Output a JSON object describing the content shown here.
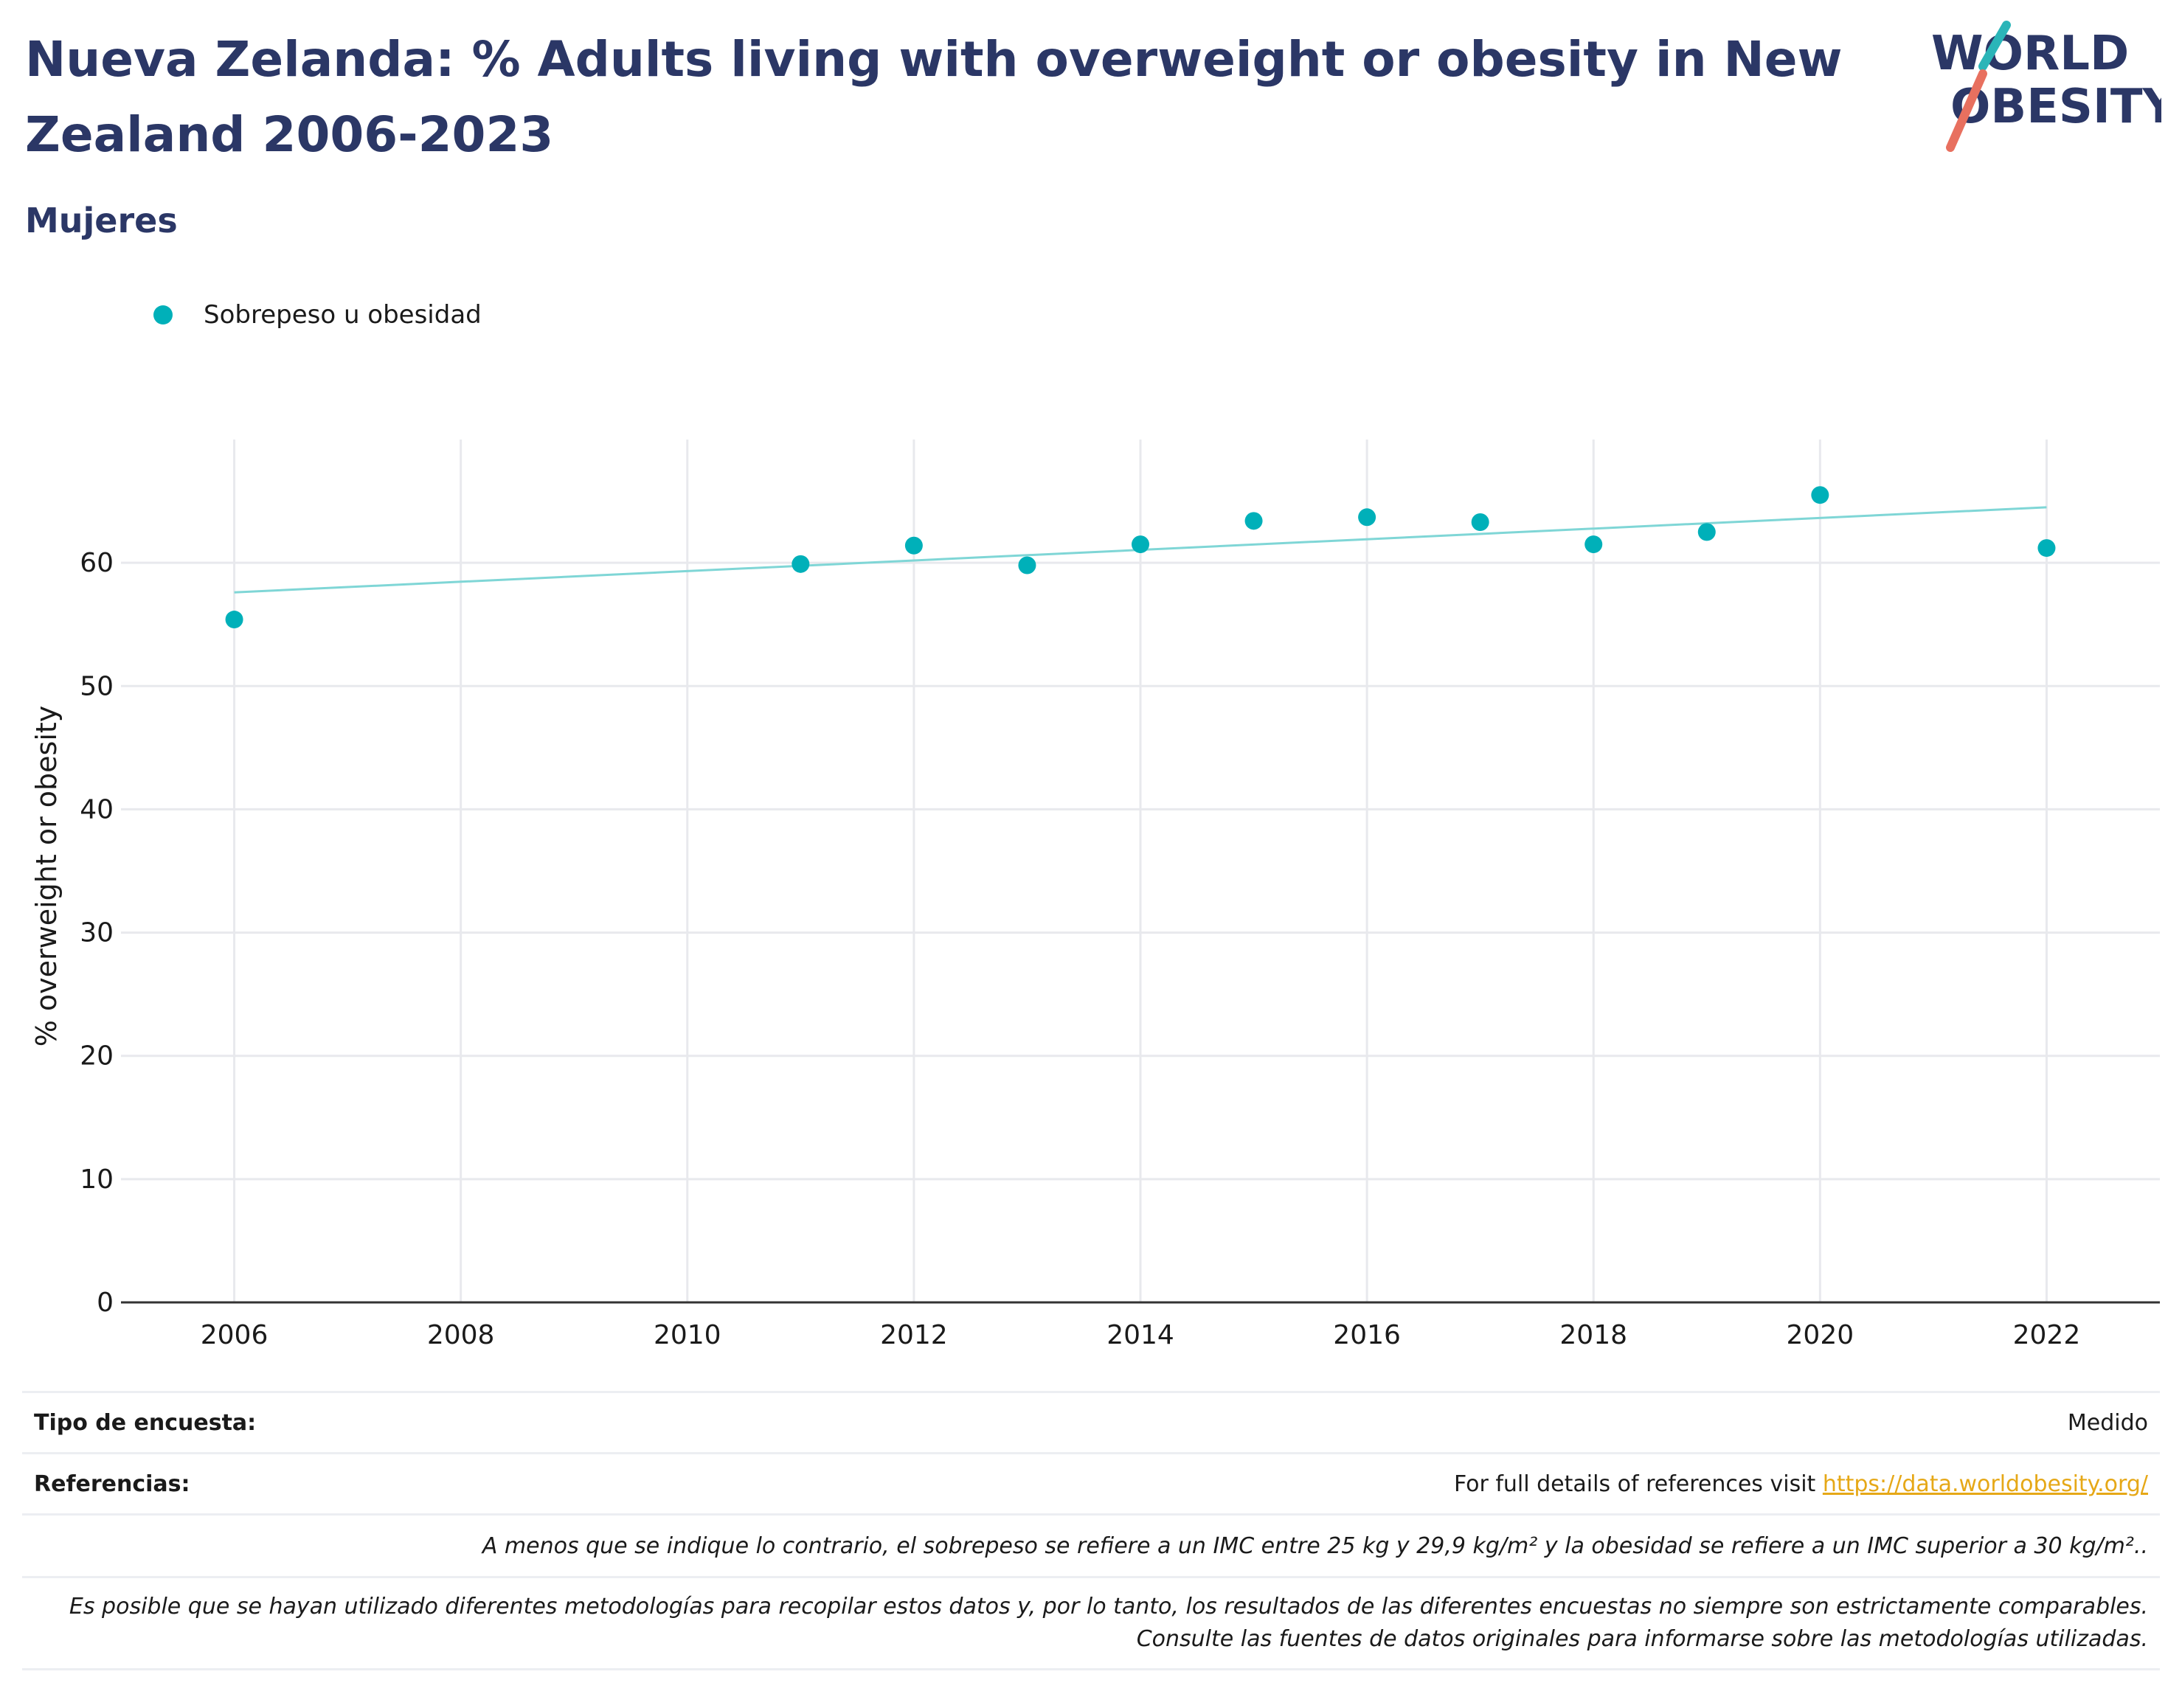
{
  "header": {
    "title": "Nueva Zelanda: % Adults living with overweight or obesity in New Zealand 2006-2023",
    "subtitle": "Mujeres"
  },
  "logo": {
    "line1": "WORLD",
    "line2": "OBESITY",
    "icon": "world-obesity-logo"
  },
  "colors": {
    "title": "#2b3766",
    "series": "#00b0b9",
    "trend": "#7fd6d6",
    "link": "#e6a817",
    "grid": "#e8e9ed"
  },
  "chart_data": {
    "type": "scatter",
    "xlabel": "",
    "ylabel": "% overweight or obesity",
    "xlim": [
      2005,
      2023
    ],
    "ylim": [
      0,
      70
    ],
    "xticks": [
      2006,
      2008,
      2010,
      2012,
      2014,
      2016,
      2018,
      2020,
      2022
    ],
    "yticks": [
      0,
      10,
      20,
      30,
      40,
      50,
      60
    ],
    "legend_position": "top-left",
    "grid": true,
    "series": [
      {
        "name": "Sobrepeso u obesidad",
        "x": [
          2006,
          2011,
          2012,
          2013,
          2014,
          2015,
          2016,
          2017,
          2018,
          2019,
          2020,
          2022
        ],
        "y": [
          55.4,
          59.9,
          61.4,
          59.8,
          61.5,
          63.4,
          63.7,
          63.3,
          61.5,
          62.5,
          65.5,
          61.2
        ]
      }
    ],
    "trendline": {
      "x": [
        2006,
        2022
      ],
      "y": [
        57.6,
        64.5
      ]
    }
  },
  "footer": {
    "survey_label": "Tipo de encuesta:",
    "survey_value": "Medido",
    "refs_label": "Referencias:",
    "refs_text": "For full details of references visit ",
    "refs_link": "https://data.worldobesity.org/",
    "note1": "A menos que se indique lo contrario, el sobrepeso se refiere a un IMC entre 25 kg y 29,9 kg/m² y la obesidad se refiere a un IMC superior a 30 kg/m²..",
    "note2": "Es posible que se hayan utilizado diferentes metodologías para recopilar estos datos y, por lo tanto, los resultados de las diferentes encuestas no siempre son estrictamente comparables. Consulte las fuentes de datos originales para informarse sobre las metodologías utilizadas."
  }
}
